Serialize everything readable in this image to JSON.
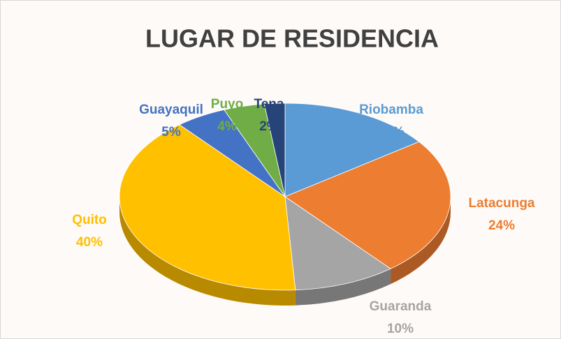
{
  "chart_data": {
    "type": "pie3d",
    "title": "LUGAR DE RESIDENCIA",
    "categories": [
      "Riobamba",
      "Latacunga",
      "Guaranda",
      "Quito",
      "Guayaquil",
      "Puyo",
      "Tena"
    ],
    "values": [
      15,
      24,
      10,
      40,
      5,
      4,
      2
    ],
    "value_labels": [
      "15%",
      "24%",
      "10%",
      "40%",
      "5%",
      "4%",
      "2%"
    ],
    "colors": [
      "#5b9bd5",
      "#ed7d31",
      "#a5a5a5",
      "#ffc000",
      "#4472c4",
      "#70ad47",
      "#264478"
    ]
  }
}
